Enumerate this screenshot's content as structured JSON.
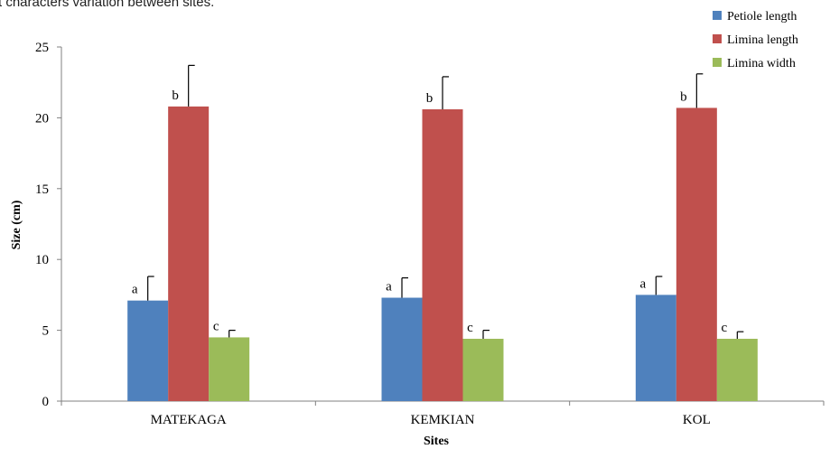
{
  "chart_data": {
    "type": "bar",
    "title": "t characters variation between sites.",
    "xlabel": "Sites",
    "ylabel": "Size (cm)",
    "ylim": [
      0,
      25
    ],
    "yticks": [
      "0",
      "5",
      "10",
      "15",
      "20",
      "25"
    ],
    "categories": [
      "MATEKAGA",
      "KEMKIAN",
      "KOL"
    ],
    "legend_position": "top-right",
    "grid": false,
    "series": [
      {
        "name": "Petiole length",
        "color": "#4F81BD",
        "values": [
          7.1,
          7.3,
          7.5
        ],
        "errors": [
          1.7,
          1.4,
          1.3
        ],
        "letters": [
          "a",
          "a",
          "a"
        ]
      },
      {
        "name": "Limina length",
        "color": "#C0504D",
        "values": [
          20.8,
          20.6,
          20.7
        ],
        "errors": [
          2.9,
          2.3,
          2.4
        ],
        "letters": [
          "b",
          "b",
          "b"
        ]
      },
      {
        "name": "Limina width",
        "color": "#9BBB59",
        "values": [
          4.5,
          4.4,
          4.4
        ],
        "errors": [
          0.5,
          0.6,
          0.5
        ],
        "letters": [
          "c",
          "c",
          "c"
        ]
      }
    ]
  }
}
